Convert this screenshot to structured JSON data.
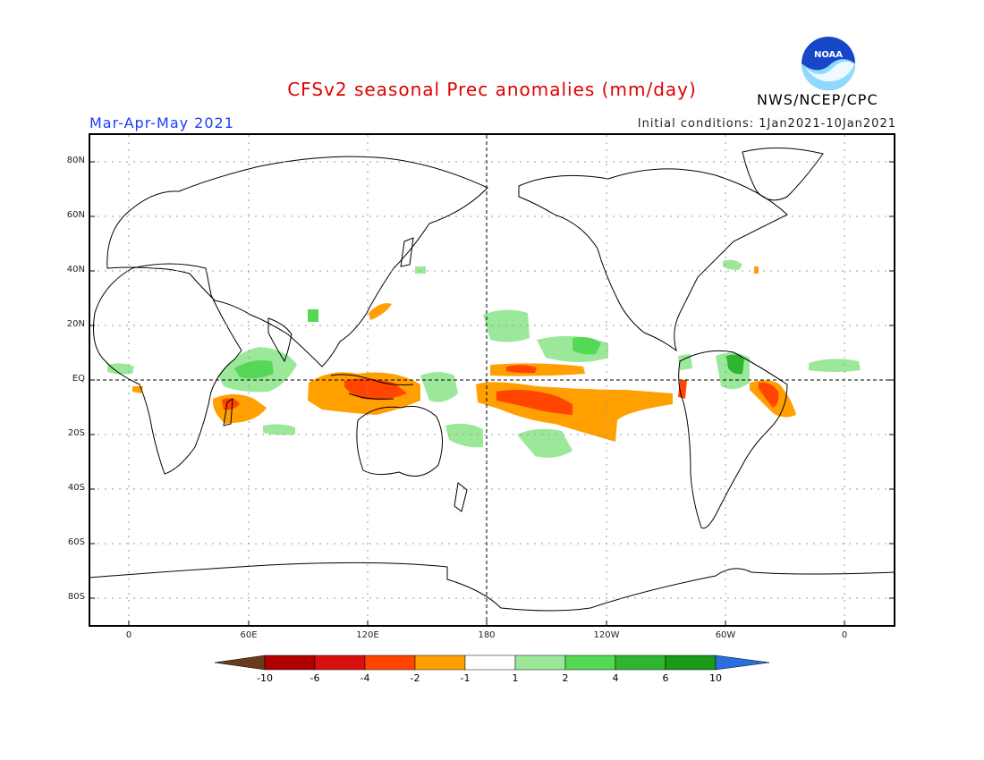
{
  "header": {
    "title": "CFSv2 seasonal Prec anomalies (mm/day)",
    "season": "Mar-Apr-May 2021",
    "initial_conditions": "Initial conditions: 1Jan2021-10Jan2021",
    "agency": "NWS/NCEP/CPC",
    "logo_text": "NOAA"
  },
  "axes": {
    "latitudes": [
      "80N",
      "60N",
      "40N",
      "20N",
      "EQ",
      "20S",
      "40S",
      "60S",
      "80S"
    ],
    "longitudes": [
      "0",
      "60E",
      "120E",
      "180",
      "120W",
      "60W",
      "0"
    ]
  },
  "colorbar": {
    "ticks": [
      "-10",
      "-6",
      "-4",
      "-2",
      "-1",
      "1",
      "2",
      "4",
      "6",
      "10"
    ],
    "colors": [
      "#6b3a1e",
      "#b00000",
      "#d81010",
      "#ff4500",
      "#ff9f00",
      "#ffffff",
      "#9be89b",
      "#55d855",
      "#2fb52f",
      "#199a19",
      "#2a6fe0"
    ]
  },
  "colors": {
    "dry_light": "#ff9f00",
    "dry_mid": "#ff4500",
    "wet_light": "#9be89b",
    "wet_mid": "#55d855",
    "wet_strong": "#2fb52f"
  }
}
